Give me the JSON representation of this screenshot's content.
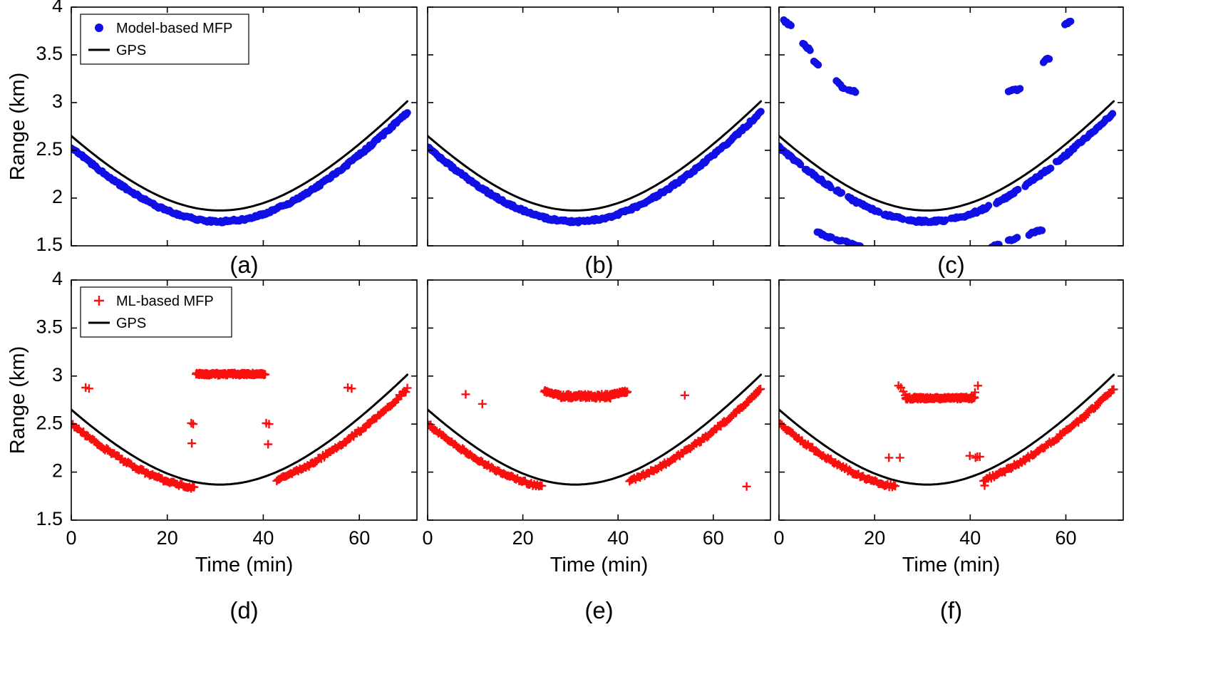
{
  "figure": {
    "background": "#ffffff"
  },
  "chart_data": {
    "type": "scatter",
    "title": "",
    "layout_grid": {
      "rows": 2,
      "cols": 3
    },
    "x_axis": {
      "label": "Time (min)",
      "range": [
        0,
        72
      ],
      "tick_values": [
        0,
        20,
        40,
        60
      ],
      "tick_labels": [
        "0",
        "20",
        "40",
        "60"
      ]
    },
    "y_axis": {
      "label": "Range (km)",
      "range": [
        1.5,
        4
      ],
      "tick_values": [
        1.5,
        2,
        2.5,
        3,
        3.5,
        4
      ],
      "tick_labels": [
        "1.5",
        "2",
        "2.5",
        "3",
        "3.5",
        "4"
      ]
    },
    "colors": {
      "model_mfp": "#1010e6",
      "ml_mfp": "#fa0f0f",
      "gps": "#000000"
    },
    "gps_model": {
      "type": "cpa_range",
      "formula": "R(t)=sqrt(r_cpa^2+(speed*(t-t_cpa))^2)",
      "r_cpa_km": 1.87,
      "t_cpa_min": 31,
      "speed_km_per_min": 0.0606,
      "t_start_min": 0,
      "t_end_min": 70
    },
    "legends": {
      "model": {
        "items": [
          {
            "marker": "dot",
            "color_key": "model_mfp",
            "label": "Model-based MFP"
          },
          {
            "marker": "line",
            "color_key": "gps",
            "label": "GPS"
          }
        ]
      },
      "ml": {
        "items": [
          {
            "marker": "plus",
            "color_key": "ml_mfp",
            "label": "ML-based MFP"
          },
          {
            "marker": "line",
            "color_key": "gps",
            "label": "GPS"
          }
        ]
      }
    },
    "panels": [
      {
        "id": "a",
        "caption": "(a)",
        "series": "model_mfp",
        "marker": "dot",
        "legend": "model",
        "track_segments": [
          [
            0,
            70
          ]
        ],
        "track_offset": -0.115,
        "outlier_segments": [],
        "outlier_points": []
      },
      {
        "id": "b",
        "caption": "(b)",
        "series": "model_mfp",
        "marker": "dot",
        "legend": null,
        "track_segments": [
          [
            0,
            70
          ]
        ],
        "track_offset": -0.115,
        "outlier_segments": [],
        "outlier_points": []
      },
      {
        "id": "c",
        "caption": "(c)",
        "series": "model_mfp",
        "marker": "dot",
        "legend": null,
        "track_segments": [
          [
            0,
            4.5
          ],
          [
            5.5,
            11
          ],
          [
            12,
            13.2
          ],
          [
            14.5,
            21
          ],
          [
            22,
            26
          ],
          [
            27,
            35
          ],
          [
            36,
            44
          ],
          [
            45.5,
            50
          ],
          [
            51.5,
            57
          ],
          [
            58,
            70
          ]
        ],
        "track_offset": -0.115,
        "outlier_segments": [
          [
            1,
            2.5,
            3.86,
            3.8
          ],
          [
            5,
            6.5,
            3.62,
            3.55
          ],
          [
            7.3,
            8.2,
            3.43,
            3.4
          ],
          [
            12,
            13.5,
            3.22,
            3.15
          ],
          [
            14.5,
            16,
            3.14,
            3.11
          ],
          [
            48,
            50.5,
            3.12,
            3.14
          ],
          [
            55.3,
            56.6,
            3.43,
            3.47
          ],
          [
            59.8,
            61,
            3.81,
            3.86
          ],
          [
            8,
            11,
            1.64,
            1.58
          ],
          [
            12,
            13.2,
            1.57,
            1.55
          ],
          [
            14,
            17,
            1.54,
            1.49
          ],
          [
            44.5,
            46,
            1.49,
            1.52
          ],
          [
            48,
            49.8,
            1.55,
            1.58
          ],
          [
            52.3,
            55,
            1.62,
            1.67
          ]
        ],
        "outlier_points": []
      },
      {
        "id": "d",
        "caption": "(d)",
        "series": "ml_mfp",
        "marker": "plus",
        "legend": "ml",
        "track_segments": [
          [
            0,
            25.8
          ],
          [
            42.8,
            70
          ]
        ],
        "track_offset": "auto",
        "outlier_segments": [
          [
            26,
            40.5,
            3.02,
            3.02,
            0.12,
            0.012
          ]
        ],
        "outlier_points": [
          [
            3,
            2.88
          ],
          [
            3.7,
            2.87
          ],
          [
            25,
            2.51
          ],
          [
            25.4,
            2.5
          ],
          [
            25.1,
            2.3
          ],
          [
            40.6,
            2.51
          ],
          [
            41.2,
            2.5
          ],
          [
            41,
            2.29
          ],
          [
            57.6,
            2.88
          ],
          [
            58.4,
            2.87
          ]
        ]
      },
      {
        "id": "e",
        "caption": "(e)",
        "series": "ml_mfp",
        "marker": "plus",
        "legend": null,
        "track_segments": [
          [
            0,
            24.2
          ],
          [
            42.4,
            70
          ]
        ],
        "track_offset": "auto",
        "outlier_segments": [
          [
            24.5,
            28,
            2.84,
            2.8,
            0.15,
            0.012
          ],
          [
            28,
            38.5,
            2.79,
            2.79,
            0.13,
            0.022
          ],
          [
            38.5,
            42,
            2.81,
            2.84,
            0.15,
            0.012
          ]
        ],
        "outlier_points": [
          [
            8,
            2.81
          ],
          [
            11.5,
            2.71
          ],
          [
            54,
            2.8
          ],
          [
            67,
            1.85
          ]
        ]
      },
      {
        "id": "f",
        "caption": "(f)",
        "series": "ml_mfp",
        "marker": "plus",
        "legend": null,
        "track_segments": [
          [
            0,
            24.5
          ],
          [
            42.8,
            70
          ]
        ],
        "track_offset": "auto",
        "outlier_segments": [
          [
            26.5,
            41,
            2.77,
            2.77,
            0.12,
            0.012
          ]
        ],
        "outlier_points": [
          [
            25,
            2.9
          ],
          [
            25.5,
            2.88
          ],
          [
            26,
            2.84
          ],
          [
            26.4,
            2.8
          ],
          [
            41,
            2.83
          ],
          [
            41.6,
            2.9
          ],
          [
            23,
            2.15
          ],
          [
            25.3,
            2.15
          ],
          [
            39.9,
            2.17
          ],
          [
            41.1,
            2.15
          ],
          [
            41.5,
            2.16
          ],
          [
            42,
            2.16
          ],
          [
            43,
            1.86
          ]
        ]
      }
    ]
  }
}
